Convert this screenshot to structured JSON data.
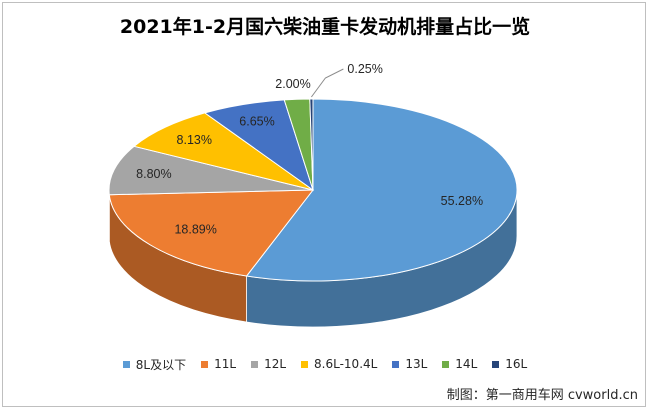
{
  "chart_data": {
    "type": "pie",
    "title": "2021年1-2月国六柴油重卡发动机排量占比一览",
    "categories": [
      "8L及以下",
      "11L",
      "12L",
      "8.6L-10.4L",
      "13L",
      "14L",
      "16L"
    ],
    "values": [
      55.28,
      18.89,
      8.8,
      8.13,
      6.65,
      2.0,
      0.25
    ],
    "data_labels": [
      "55.28%",
      "18.89%",
      "8.80%",
      "8.13%",
      "6.65%",
      "2.00%",
      "0.25%"
    ],
    "colors": [
      "#5b9bd5",
      "#ed7d31",
      "#a5a5a5",
      "#ffc000",
      "#4472c4",
      "#70ad47",
      "#264478"
    ],
    "legend_position": "bottom",
    "style": "3d"
  },
  "credit": "制图：第一商用车网 cvworld.cn"
}
